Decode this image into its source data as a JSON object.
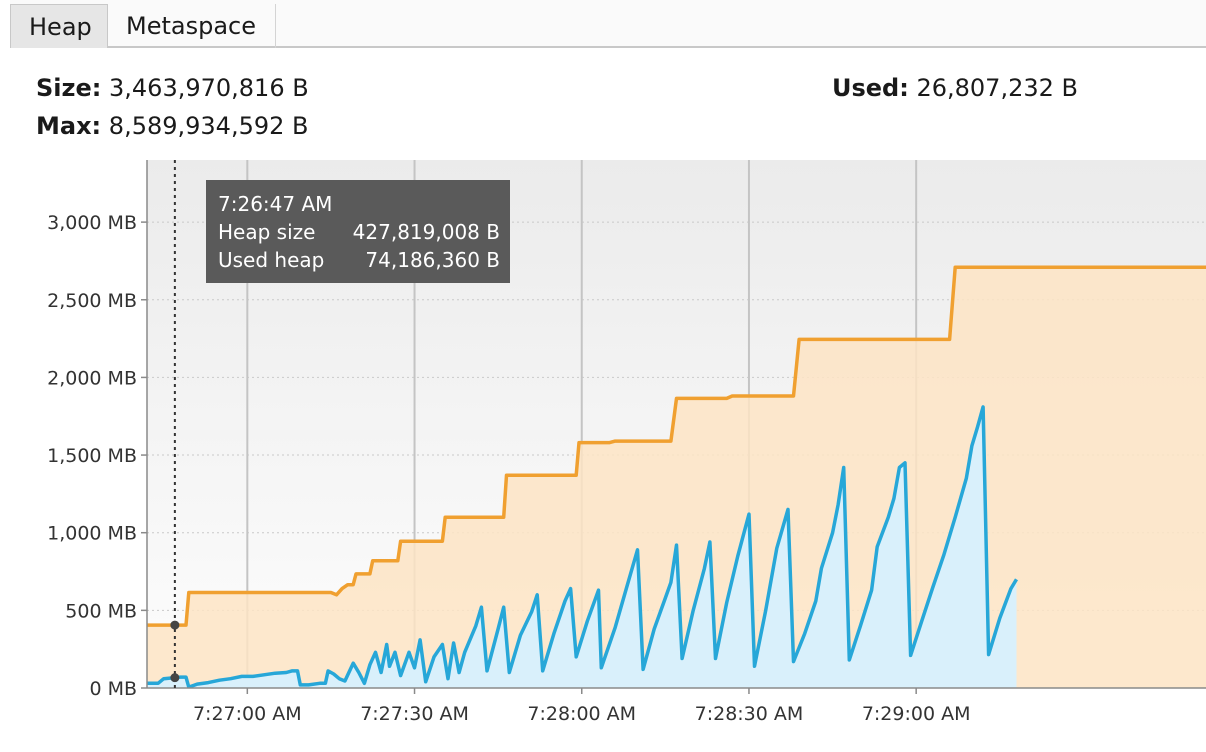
{
  "tabs": [
    {
      "label": "Heap",
      "active": true
    },
    {
      "label": "Metaspace",
      "active": false
    }
  ],
  "stats": {
    "size_label": "Size:",
    "size_value": "3,463,970,816 B",
    "used_label": "Used:",
    "used_value": "26,807,232 B",
    "max_label": "Max:",
    "max_value": "8,589,934,592 B"
  },
  "colors": {
    "heap_size_line": "#f0a030",
    "heap_size_fill": "#fde4c4",
    "used_heap_line": "#27a7d8",
    "used_heap_fill": "#d9f0fb",
    "tooltip_bg": "#5a5a5a"
  },
  "tooltip": {
    "time": "7:26:47 AM",
    "rows": [
      {
        "label": "Heap size",
        "value": "427,819,008 B"
      },
      {
        "label": "Used heap",
        "value": "74,186,360 B"
      }
    ]
  },
  "chart_data": {
    "type": "area",
    "ylim": [
      0,
      3400
    ],
    "xlim": [
      0,
      190
    ],
    "y_ticks": [
      0,
      500,
      1000,
      1500,
      2000,
      2500,
      3000
    ],
    "y_tick_labels": [
      "0 MB",
      "500 MB",
      "1,000 MB",
      "1,500 MB",
      "2,000 MB",
      "2,500 MB",
      "3,000 MB"
    ],
    "x_ticks": [
      18,
      48,
      78,
      108,
      138
    ],
    "x_tick_labels": [
      "7:27:00 AM",
      "7:27:30 AM",
      "7:28:00 AM",
      "7:28:30 AM",
      "7:29:00 AM"
    ],
    "cursor_x": 5,
    "series": [
      {
        "key": "heap_size",
        "points": [
          [
            0,
            405
          ],
          [
            7,
            405
          ],
          [
            7.5,
            615
          ],
          [
            33,
            615
          ],
          [
            34,
            600
          ],
          [
            35,
            640
          ],
          [
            36,
            665
          ],
          [
            37,
            665
          ],
          [
            37.5,
            735
          ],
          [
            40,
            735
          ],
          [
            40.5,
            820
          ],
          [
            45,
            820
          ],
          [
            45.5,
            945
          ],
          [
            53,
            945
          ],
          [
            53.5,
            1100
          ],
          [
            64,
            1100
          ],
          [
            64.5,
            1370
          ],
          [
            77,
            1370
          ],
          [
            77.5,
            1580
          ],
          [
            83,
            1580
          ],
          [
            84,
            1590
          ],
          [
            94,
            1590
          ],
          [
            95,
            1865
          ],
          [
            104,
            1865
          ],
          [
            105,
            1880
          ],
          [
            116,
            1880
          ],
          [
            117,
            2245
          ],
          [
            144,
            2245
          ],
          [
            145,
            2710
          ],
          [
            190,
            2710
          ]
        ]
      },
      {
        "key": "used_heap",
        "points": [
          [
            0,
            30
          ],
          [
            2,
            30
          ],
          [
            3,
            60
          ],
          [
            6,
            70
          ],
          [
            7,
            70
          ],
          [
            7.5,
            5
          ],
          [
            9,
            25
          ],
          [
            11,
            35
          ],
          [
            13,
            50
          ],
          [
            15,
            60
          ],
          [
            17,
            75
          ],
          [
            19,
            75
          ],
          [
            21,
            85
          ],
          [
            23,
            95
          ],
          [
            25,
            100
          ],
          [
            26,
            110
          ],
          [
            27,
            110
          ],
          [
            27.5,
            20
          ],
          [
            29,
            20
          ],
          [
            31,
            30
          ],
          [
            32,
            30
          ],
          [
            32.5,
            110
          ],
          [
            33.5,
            90
          ],
          [
            34.5,
            60
          ],
          [
            35.5,
            45
          ],
          [
            37,
            160
          ],
          [
            38,
            100
          ],
          [
            39,
            30
          ],
          [
            40,
            150
          ],
          [
            41,
            230
          ],
          [
            42,
            100
          ],
          [
            43,
            280
          ],
          [
            43.5,
            140
          ],
          [
            44.5,
            230
          ],
          [
            45.5,
            80
          ],
          [
            47,
            230
          ],
          [
            48,
            130
          ],
          [
            49,
            310
          ],
          [
            50,
            40
          ],
          [
            51.5,
            200
          ],
          [
            53,
            280
          ],
          [
            54,
            60
          ],
          [
            55,
            290
          ],
          [
            56,
            100
          ],
          [
            57,
            230
          ],
          [
            59,
            400
          ],
          [
            60,
            520
          ],
          [
            61,
            110
          ],
          [
            63,
            380
          ],
          [
            64,
            520
          ],
          [
            65,
            100
          ],
          [
            67,
            340
          ],
          [
            69,
            490
          ],
          [
            70,
            600
          ],
          [
            71,
            110
          ],
          [
            73,
            350
          ],
          [
            75,
            560
          ],
          [
            76,
            640
          ],
          [
            77,
            200
          ],
          [
            79,
            430
          ],
          [
            81,
            630
          ],
          [
            81.5,
            130
          ],
          [
            84,
            390
          ],
          [
            86,
            640
          ],
          [
            88,
            890
          ],
          [
            89,
            120
          ],
          [
            91,
            380
          ],
          [
            93,
            580
          ],
          [
            94,
            680
          ],
          [
            95,
            920
          ],
          [
            96,
            190
          ],
          [
            98,
            500
          ],
          [
            100,
            770
          ],
          [
            101,
            940
          ],
          [
            102,
            190
          ],
          [
            104,
            550
          ],
          [
            106,
            850
          ],
          [
            108,
            1120
          ],
          [
            109,
            140
          ],
          [
            111,
            500
          ],
          [
            113,
            900
          ],
          [
            115,
            1150
          ],
          [
            116,
            170
          ],
          [
            118,
            350
          ],
          [
            120,
            560
          ],
          [
            121,
            770
          ],
          [
            123,
            1000
          ],
          [
            124,
            1180
          ],
          [
            125,
            1420
          ],
          [
            126,
            180
          ],
          [
            128,
            400
          ],
          [
            130,
            630
          ],
          [
            131,
            910
          ],
          [
            133,
            1100
          ],
          [
            134,
            1220
          ],
          [
            135,
            1420
          ],
          [
            136,
            1450
          ],
          [
            137,
            210
          ],
          [
            139,
            430
          ],
          [
            141,
            650
          ],
          [
            143,
            860
          ],
          [
            145,
            1100
          ],
          [
            147,
            1350
          ],
          [
            148,
            1560
          ],
          [
            149,
            1680
          ],
          [
            150,
            1810
          ],
          [
            151,
            215
          ],
          [
            153,
            450
          ],
          [
            155,
            640
          ],
          [
            156,
            700
          ]
        ]
      }
    ]
  }
}
